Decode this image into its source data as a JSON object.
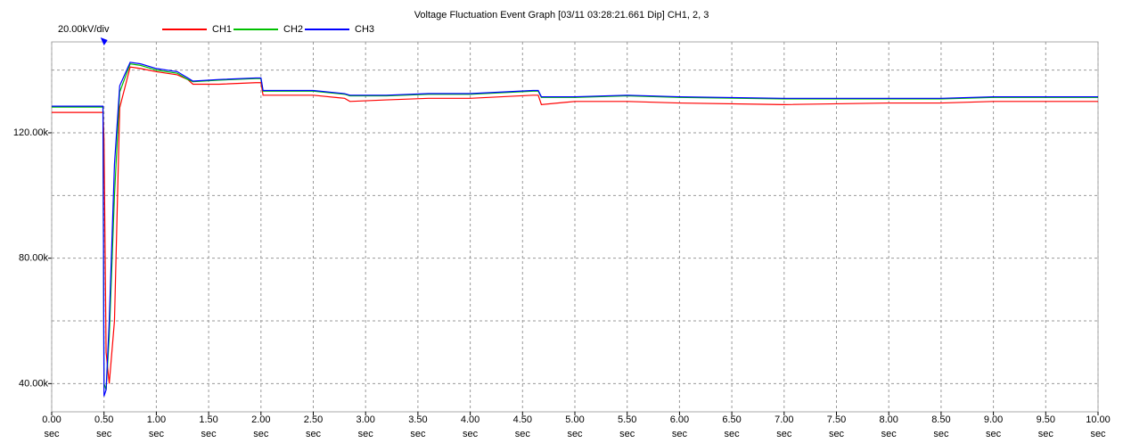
{
  "chart_data": {
    "type": "line",
    "title": "Voltage Fluctuation Event Graph [03/11 03:28:21.661  Dip] CH1, 2, 3",
    "scale_label": "20.00kV/div",
    "x": [
      0,
      0.49,
      0.5,
      0.52,
      0.55,
      0.6,
      0.65,
      0.75,
      0.85,
      1.0,
      1.2,
      1.3,
      1.35,
      1.6,
      1.95,
      2.0,
      2.02,
      2.5,
      2.8,
      2.85,
      3.2,
      3.6,
      4.0,
      4.6,
      4.65,
      4.68,
      5.0,
      5.5,
      6.0,
      7.0,
      8.0,
      8.5,
      9.0,
      10.0
    ],
    "series": [
      {
        "name": "CH1",
        "color": "#ff0000",
        "values": [
          126500,
          126500,
          118000,
          50000,
          40000,
          60000,
          128000,
          141000,
          140500,
          139500,
          138500,
          137000,
          135500,
          135500,
          136000,
          136000,
          132000,
          132000,
          131000,
          130000,
          130500,
          131000,
          131000,
          132000,
          132000,
          129000,
          130000,
          130000,
          129500,
          129000,
          129500,
          129500,
          130000,
          130000
        ]
      },
      {
        "name": "CH2",
        "color": "#00c000",
        "values": [
          128200,
          128200,
          40000,
          38000,
          55000,
          100000,
          133000,
          142000,
          141500,
          140000,
          139000,
          137000,
          136300,
          136800,
          137300,
          137300,
          133300,
          133300,
          132300,
          131800,
          131800,
          132300,
          132300,
          133300,
          133300,
          131300,
          131300,
          131800,
          131300,
          130800,
          130800,
          130800,
          131300,
          131300
        ]
      },
      {
        "name": "CH3",
        "color": "#0000ff",
        "values": [
          128500,
          128500,
          36000,
          38000,
          60000,
          110000,
          135000,
          142500,
          142000,
          140500,
          139500,
          137500,
          136500,
          137000,
          137500,
          137500,
          133500,
          133500,
          132500,
          132000,
          132000,
          132500,
          132500,
          133500,
          133500,
          131500,
          131500,
          132000,
          131500,
          131000,
          131000,
          131000,
          131500,
          131500
        ]
      }
    ],
    "trigger": 0.5,
    "xlim": [
      0,
      10
    ],
    "xticks": [
      {
        "value": 0,
        "label": "0.00"
      },
      {
        "value": 0.5,
        "label": "0.50"
      },
      {
        "value": 1,
        "label": "1.00"
      },
      {
        "value": 1.5,
        "label": "1.50"
      },
      {
        "value": 2,
        "label": "2.00"
      },
      {
        "value": 2.5,
        "label": "2.50"
      },
      {
        "value": 3,
        "label": "3.00"
      },
      {
        "value": 3.5,
        "label": "3.50"
      },
      {
        "value": 4,
        "label": "4.00"
      },
      {
        "value": 4.5,
        "label": "4.50"
      },
      {
        "value": 5,
        "label": "5.00"
      },
      {
        "value": 5.5,
        "label": "5.50"
      },
      {
        "value": 6,
        "label": "6.00"
      },
      {
        "value": 6.5,
        "label": "6.50"
      },
      {
        "value": 7,
        "label": "7.00"
      },
      {
        "value": 7.5,
        "label": "7.50"
      },
      {
        "value": 8,
        "label": "8.00"
      },
      {
        "value": 8.5,
        "label": "8.50"
      },
      {
        "value": 9,
        "label": "9.00"
      },
      {
        "value": 9.5,
        "label": "9.50"
      },
      {
        "value": 10,
        "label": "10.00"
      }
    ],
    "xunit": "sec",
    "ylim": [
      31000,
      149000
    ],
    "yticks": [
      {
        "value": 40000,
        "label": "40.00k"
      },
      {
        "value": 80000,
        "label": "80.00k"
      },
      {
        "value": 120000,
        "label": "120.00k"
      }
    ],
    "ygrid": [
      40000,
      60000,
      80000,
      100000,
      120000,
      140000
    ],
    "grid": true
  }
}
